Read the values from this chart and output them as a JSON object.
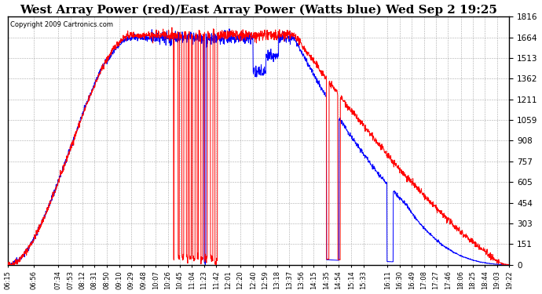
{
  "title": "West Array Power (red)/East Array Power (Watts blue) Wed Sep 2 19:25",
  "copyright": "Copyright 2009 Cartronics.com",
  "y_max": 1815.9,
  "y_ticks": [
    0.0,
    151.3,
    302.6,
    454.0,
    605.3,
    756.6,
    907.9,
    1059.3,
    1210.6,
    1361.9,
    1513.2,
    1664.5,
    1815.9
  ],
  "x_labels": [
    "06:15",
    "06:56",
    "07:34",
    "07:53",
    "08:12",
    "08:31",
    "08:50",
    "09:10",
    "09:29",
    "09:48",
    "10:07",
    "10:26",
    "10:45",
    "11:04",
    "11:23",
    "11:42",
    "12:01",
    "12:20",
    "12:40",
    "12:59",
    "13:18",
    "13:37",
    "13:56",
    "14:15",
    "14:35",
    "14:54",
    "15:14",
    "15:33",
    "16:11",
    "16:30",
    "16:49",
    "17:08",
    "17:27",
    "17:46",
    "18:06",
    "18:25",
    "18:44",
    "19:03",
    "19:22"
  ],
  "background_color": "#ffffff",
  "grid_color": "#aaaaaa",
  "red_color": "#ff0000",
  "blue_color": "#0000ff",
  "title_fontsize": 11,
  "figsize": [
    6.9,
    3.75
  ],
  "dpi": 100
}
